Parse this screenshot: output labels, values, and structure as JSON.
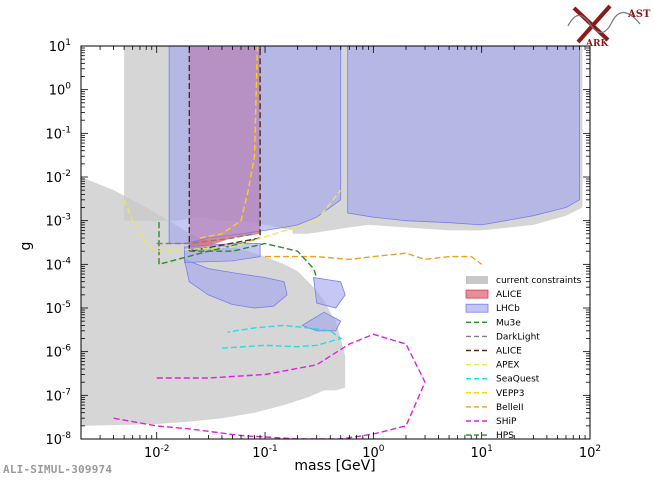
{
  "chart_data": {
    "type": "line",
    "xlabel": "mass [GeV]",
    "ylabel": "g",
    "xscale": "log",
    "yscale": "log",
    "xlim": [
      0.002,
      100
    ],
    "ylim": [
      1e-08,
      10
    ],
    "xticks": [
      {
        "value": 0.01,
        "base": "10",
        "exp": "-2"
      },
      {
        "value": 0.1,
        "base": "10",
        "exp": "-1"
      },
      {
        "value": 1,
        "base": "10",
        "exp": "0"
      },
      {
        "value": 10,
        "base": "10",
        "exp": "1"
      },
      {
        "value": 100,
        "base": "10",
        "exp": "2"
      }
    ],
    "yticks": [
      {
        "value": 1e-08,
        "base": "10",
        "exp": "-8"
      },
      {
        "value": 1e-07,
        "base": "10",
        "exp": "-7"
      },
      {
        "value": 1e-06,
        "base": "10",
        "exp": "-6"
      },
      {
        "value": 1e-05,
        "base": "10",
        "exp": "-5"
      },
      {
        "value": 0.0001,
        "base": "10",
        "exp": "-4"
      },
      {
        "value": 0.001,
        "base": "10",
        "exp": "-3"
      },
      {
        "value": 0.01,
        "base": "10",
        "exp": "-2"
      },
      {
        "value": 0.1,
        "base": "10",
        "exp": "-1"
      },
      {
        "value": 1,
        "base": "10",
        "exp": "0"
      },
      {
        "value": 10,
        "base": "10",
        "exp": "1"
      }
    ],
    "legend_position": "lower-right",
    "regions": [
      {
        "name": "current constraints",
        "color": "#c8c8c8",
        "opacity": 0.75,
        "polygons": [
          [
            [
              0.002,
              0.01
            ],
            [
              0.004,
              0.005
            ],
            [
              0.008,
              0.002
            ],
            [
              0.013,
              0.001
            ],
            [
              0.018,
              0.0006
            ],
            [
              0.025,
              0.0004
            ],
            [
              0.035,
              0.0003
            ],
            [
              0.05,
              0.00025
            ],
            [
              0.07,
              0.0002
            ],
            [
              0.1,
              0.00015
            ],
            [
              0.15,
              0.0001
            ],
            [
              0.2,
              7e-05
            ],
            [
              0.25,
              4e-05
            ],
            [
              0.3,
              2.5e-05
            ],
            [
              0.35,
              1.5e-05
            ],
            [
              0.4,
              8e-06
            ],
            [
              0.45,
              5e-06
            ],
            [
              0.5,
              2e-06
            ],
            [
              0.55,
              8e-07
            ],
            [
              0.55,
              1.5e-07
            ],
            [
              0.45,
              1.3e-07
            ],
            [
              0.35,
              1.3e-07
            ],
            [
              0.25,
              9e-08
            ],
            [
              0.15,
              6e-08
            ],
            [
              0.08,
              4e-08
            ],
            [
              0.04,
              3e-08
            ],
            [
              0.02,
              2.5e-08
            ],
            [
              0.01,
              2.2e-08
            ],
            [
              0.005,
              2.1e-08
            ],
            [
              0.002,
              2e-08
            ]
          ],
          [
            [
              0.005,
              10
            ],
            [
              0.18,
              10
            ],
            [
              0.18,
              0.0006
            ],
            [
              0.1,
              0.0008
            ],
            [
              0.06,
              0.001
            ],
            [
              0.04,
              0.001
            ],
            [
              0.025,
              0.0012
            ],
            [
              0.015,
              0.001
            ],
            [
              0.008,
              0.001
            ],
            [
              0.005,
              0.001
            ]
          ],
          [
            [
              0.18,
              10
            ],
            [
              0.9,
              10
            ],
            [
              0.9,
              0.0008
            ],
            [
              0.6,
              0.0007
            ],
            [
              0.4,
              0.0006
            ],
            [
              0.25,
              0.0005
            ],
            [
              0.18,
              0.0005
            ]
          ],
          [
            [
              0.9,
              10
            ],
            [
              85,
              10
            ],
            [
              85,
              0.002
            ],
            [
              60,
              0.0013
            ],
            [
              30,
              0.0008
            ],
            [
              10,
              0.0006
            ],
            [
              5,
              0.0006
            ],
            [
              2,
              0.0007
            ],
            [
              0.9,
              0.0008
            ]
          ]
        ]
      },
      {
        "name": "ALICE",
        "color": "#e05060",
        "opacity": 0.7,
        "polygons": [
          [
            [
              0.02,
              9.5
            ],
            [
              0.09,
              9.5
            ],
            [
              0.09,
              0.0005
            ],
            [
              0.05,
              0.0004
            ],
            [
              0.035,
              0.0003
            ],
            [
              0.02,
              0.0002
            ]
          ]
        ]
      },
      {
        "name": "LHCb",
        "color": "#9ea2ee",
        "opacity": 0.6,
        "polygons": [
          [
            [
              0.013,
              10
            ],
            [
              0.5,
              10
            ],
            [
              0.5,
              0.003
            ],
            [
              0.3,
              0.0012
            ],
            [
              0.2,
              0.0008
            ],
            [
              0.15,
              0.0007
            ],
            [
              0.1,
              0.0006
            ],
            [
              0.06,
              0.0005
            ],
            [
              0.03,
              0.0004
            ],
            [
              0.018,
              0.0003
            ],
            [
              0.013,
              0.0003
            ]
          ],
          [
            [
              0.58,
              10
            ],
            [
              80,
              10
            ],
            [
              80,
              0.003
            ],
            [
              60,
              0.002
            ],
            [
              30,
              0.0013
            ],
            [
              10,
              0.0008
            ],
            [
              5,
              0.0009
            ],
            [
              2,
              0.001
            ],
            [
              1,
              0.0012
            ],
            [
              0.58,
              0.0015
            ]
          ],
          [
            [
              0.018,
              0.00013
            ],
            [
              0.03,
              8e-05
            ],
            [
              0.06,
              6e-05
            ],
            [
              0.1,
              5e-05
            ],
            [
              0.15,
              4e-05
            ],
            [
              0.16,
              2e-05
            ],
            [
              0.12,
              1.1e-05
            ],
            [
              0.08,
              1e-05
            ],
            [
              0.05,
              1.2e-05
            ],
            [
              0.03,
              2e-05
            ],
            [
              0.02,
              4e-05
            ]
          ],
          [
            [
              0.28,
              5e-05
            ],
            [
              0.5,
              4e-05
            ],
            [
              0.55,
              2e-05
            ],
            [
              0.45,
              1e-05
            ],
            [
              0.3,
              1.3e-05
            ]
          ],
          [
            [
              0.22,
              4e-06
            ],
            [
              0.3,
              3e-06
            ],
            [
              0.45,
              3e-06
            ],
            [
              0.5,
              5e-06
            ],
            [
              0.35,
              8e-06
            ]
          ],
          [
            [
              0.018,
              0.00025
            ],
            [
              0.05,
              0.0003
            ],
            [
              0.09,
              0.0003
            ],
            [
              0.09,
              0.00015
            ],
            [
              0.05,
              0.00012
            ],
            [
              0.018,
              0.00011
            ]
          ]
        ]
      }
    ],
    "series": [
      {
        "name": "Mu3e",
        "color": "#2a8c2a",
        "dash": "dashed",
        "points": [
          [
            0.0105,
            0.0001
          ],
          [
            0.0105,
            0.001
          ],
          [
            0.0105,
            0.0001
          ],
          [
            0.03,
            0.0002
          ],
          [
            0.06,
            0.0003
          ],
          [
            0.09,
            0.0004
          ]
        ]
      },
      {
        "name": "DarkLight",
        "color": "#808080",
        "dash": "dashed",
        "points": [
          [
            0.01,
            0.0003
          ],
          [
            0.02,
            0.0003
          ],
          [
            0.05,
            0.0004
          ],
          [
            0.08,
            0.0005
          ]
        ]
      },
      {
        "name": "ALICE",
        "color": "#5a2a1a",
        "dash": "dashed",
        "points": [
          [
            0.02,
            9.5
          ],
          [
            0.02,
            0.0002
          ],
          [
            0.09,
            0.0004
          ],
          [
            0.09,
            9.5
          ]
        ]
      },
      {
        "name": "APEX",
        "color": "#e8e860",
        "dash": "dashed",
        "points": [
          [
            0.005,
            0.003
          ],
          [
            0.006,
            0.001
          ],
          [
            0.008,
            0.0003
          ],
          [
            0.01,
            0.0002
          ],
          [
            0.05,
            0.00025
          ],
          [
            0.3,
            0.001
          ],
          [
            0.5,
            0.005
          ]
        ]
      },
      {
        "name": "SeaQuest",
        "color": "#1de0e0",
        "dash": "dashed",
        "points": [
          [
            0.04,
            1.2e-06
          ],
          [
            0.1,
            1.4e-06
          ],
          [
            0.2,
            1.3e-06
          ],
          [
            0.3,
            1.4e-06
          ],
          [
            0.5,
            2e-06
          ],
          [
            0.4,
            3e-06
          ],
          [
            0.25,
            3.5e-06
          ],
          [
            0.15,
            4e-06
          ],
          [
            0.08,
            3.5e-06
          ],
          [
            0.045,
            2.8e-06
          ]
        ]
      },
      {
        "name": "VEPP3",
        "color": "#ffd000",
        "dash": "dashed",
        "points": [
          [
            0.025,
            0.0004
          ],
          [
            0.04,
            0.0005
          ],
          [
            0.06,
            0.001
          ],
          [
            0.07,
            0.005
          ],
          [
            0.08,
            0.03
          ],
          [
            0.085,
            10
          ]
        ]
      },
      {
        "name": "BelleII",
        "color": "#f0a020",
        "dash": "dashed",
        "points": [
          [
            0.1,
            0.00015
          ],
          [
            0.3,
            0.00015
          ],
          [
            0.6,
            0.00013
          ],
          [
            1,
            0.00015
          ],
          [
            2,
            0.00018
          ],
          [
            3,
            0.00013
          ],
          [
            5,
            0.00015
          ],
          [
            8,
            0.00015
          ],
          [
            10,
            0.0001
          ]
        ]
      },
      {
        "name": "SHiP",
        "color": "#e020e0",
        "dash": "dashed",
        "points": [
          [
            0.004,
            3e-08
          ],
          [
            0.01,
            2e-08
          ],
          [
            0.02,
            1.7e-08
          ],
          [
            0.06,
            1.2e-08
          ],
          [
            0.2,
            1e-08
          ],
          [
            0.5,
            1e-08
          ],
          [
            1,
            1.3e-08
          ],
          [
            2,
            2e-08
          ],
          [
            3,
            2e-07
          ],
          [
            2,
            1.5e-06
          ],
          [
            1,
            2.5e-06
          ],
          [
            0.6,
            1.5e-06
          ],
          [
            0.3,
            5e-07
          ],
          [
            0.1,
            3e-07
          ],
          [
            0.03,
            2.5e-07
          ],
          [
            0.01,
            2.5e-07
          ]
        ]
      },
      {
        "name": "HPS",
        "color": "#2a8c2a",
        "dash": "dashed",
        "points": [
          [
            0.02,
            0.0002
          ],
          [
            0.05,
            0.0002
          ],
          [
            0.1,
            0.0003
          ],
          [
            0.2,
            0.0002
          ],
          [
            0.28,
            8e-05
          ],
          [
            0.3,
            5e-05
          ]
        ]
      }
    ],
    "legend": [
      {
        "label": "current constraints",
        "kind": "patch",
        "color": "#c8c8c8"
      },
      {
        "label": "ALICE",
        "kind": "patch",
        "color": "#e78f98",
        "edge": "#d04050"
      },
      {
        "label": "LHCb",
        "kind": "patch",
        "color": "#c3c5f2",
        "edge": "#7a7ee8"
      },
      {
        "label": "Mu3e",
        "kind": "line",
        "color": "#2a8c2a"
      },
      {
        "label": "DarkLight",
        "kind": "line",
        "color": "#808080"
      },
      {
        "label": "ALICE",
        "kind": "line",
        "color": "#5a2a1a"
      },
      {
        "label": "APEX",
        "kind": "line",
        "color": "#e8e860"
      },
      {
        "label": "SeaQuest",
        "kind": "line",
        "color": "#1de0e0"
      },
      {
        "label": "VEPP3",
        "kind": "line",
        "color": "#ffd000"
      },
      {
        "label": "BelleII",
        "kind": "line",
        "color": "#f0a020"
      },
      {
        "label": "SHiP",
        "kind": "line",
        "color": "#e020e0"
      },
      {
        "label": "HPS",
        "kind": "line",
        "color": "#2a8c2a"
      }
    ]
  },
  "logo": {
    "text_top": "AST",
    "text_bottom": "ARK",
    "color": "#8b1a1a"
  },
  "footer": "ALI-SIMUL-309974"
}
